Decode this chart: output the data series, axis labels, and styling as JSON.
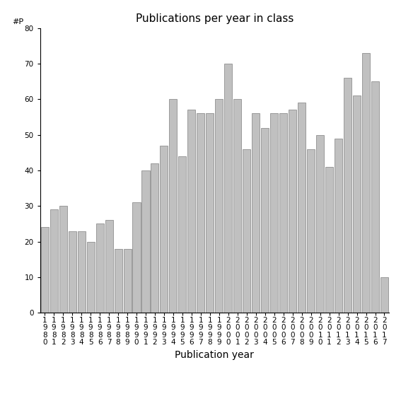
{
  "years": [
    "1980",
    "1981",
    "1982",
    "1983",
    "1984",
    "1985",
    "1986",
    "1987",
    "1988",
    "1989",
    "1990",
    "1991",
    "1992",
    "1993",
    "1994",
    "1995",
    "1996",
    "1997",
    "1998",
    "1999",
    "2000",
    "2001",
    "2002",
    "2003",
    "2004",
    "2005",
    "2006",
    "2007",
    "2008",
    "2009",
    "2010",
    "2011",
    "2012",
    "2013",
    "2014",
    "2015",
    "2016",
    "2017"
  ],
  "values": [
    24,
    29,
    30,
    23,
    23,
    20,
    25,
    26,
    18,
    18,
    31,
    40,
    42,
    47,
    60,
    44,
    57,
    56,
    56,
    60,
    70,
    60,
    46,
    56,
    52,
    56,
    56,
    57,
    59,
    46,
    50,
    41,
    49,
    66,
    61,
    73,
    65,
    10
  ],
  "bar_color": "#c0c0c0",
  "bar_edge_color": "#808080",
  "title": "Publications per year in class",
  "xlabel": "Publication year",
  "ylabel_text": "#P",
  "ylim": [
    0,
    80
  ],
  "yticks": [
    0,
    10,
    20,
    30,
    40,
    50,
    60,
    70,
    80
  ],
  "bg_color": "#ffffff",
  "title_fontsize": 11,
  "xlabel_fontsize": 10,
  "tick_fontsize": 7.5
}
